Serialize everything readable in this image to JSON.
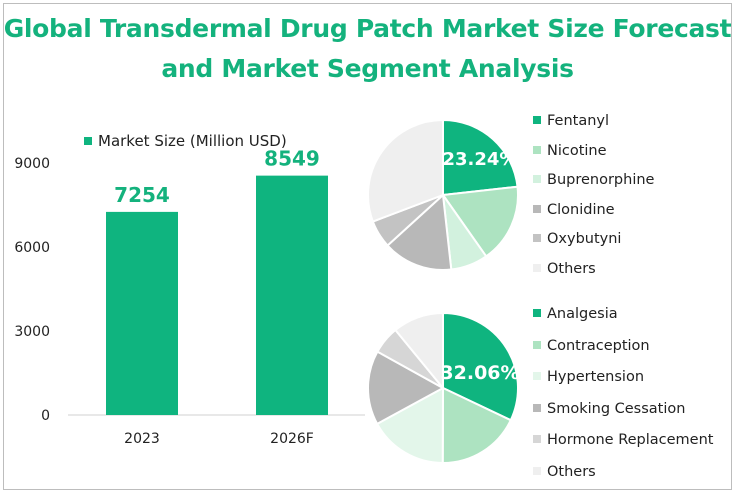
{
  "title_line1": "Global Transdermal Drug Patch Market Size Forecast",
  "title_line2": "and Market Segment Analysis",
  "chart_data": [
    {
      "type": "bar",
      "title": "",
      "legend": "Market Size (Million USD)",
      "categories": [
        "2023",
        "2026F"
      ],
      "values": [
        7254,
        8549
      ],
      "data_labels": [
        "7254",
        "8549"
      ],
      "yticks": [
        "0",
        "3000",
        "6000",
        "9000"
      ],
      "ylim": [
        0,
        9000
      ],
      "color": "#0fb47f",
      "legend_position": "top"
    },
    {
      "type": "pie",
      "labels": [
        "Fentanyl",
        "Nicotine",
        "Buprenorphine",
        "Clonidine",
        "Oxybutyni",
        "Others"
      ],
      "values": [
        23.24,
        17,
        8,
        15,
        6,
        30.76
      ],
      "shown_label": "23.24%",
      "colors": [
        "#0fb47f",
        "#ade3c1",
        "#d2f1de",
        "#b8b8b8",
        "#c3c3c3",
        "#efefef"
      ],
      "legend_position": "right"
    },
    {
      "type": "pie",
      "labels": [
        "Analgesia",
        "Contraception",
        "Hypertension",
        "Smoking Cessation",
        "Hormone Replacement",
        "Others"
      ],
      "values": [
        32.06,
        18,
        17,
        16,
        6,
        10.94
      ],
      "shown_label": "32.06%",
      "colors": [
        "#0fb47f",
        "#ade3c1",
        "#e3f6ea",
        "#b8b8b8",
        "#d6d6d6",
        "#efefef"
      ],
      "legend_position": "right"
    }
  ]
}
